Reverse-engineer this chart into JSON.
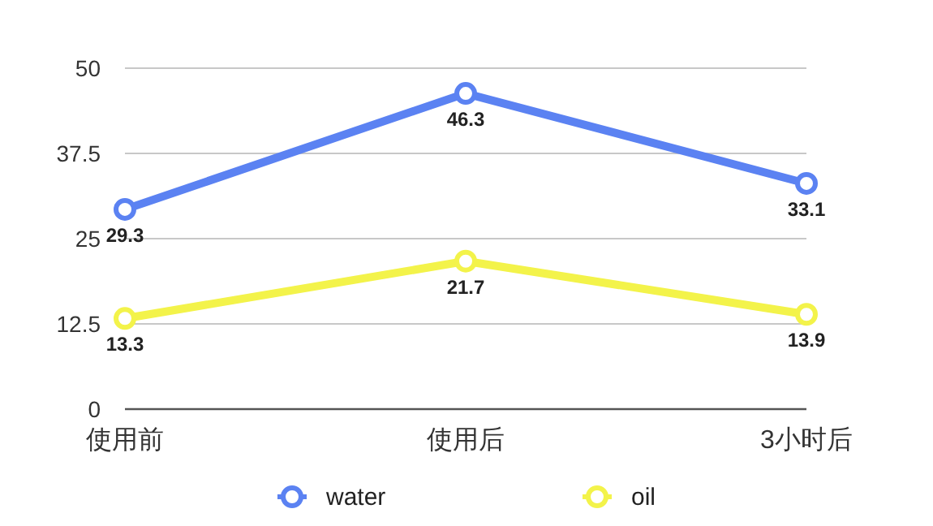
{
  "chart_data": {
    "type": "line",
    "categories": [
      "使用前",
      "使用后",
      "3小时后"
    ],
    "series": [
      {
        "name": "water",
        "color": "#5b82f2",
        "values": [
          29.3,
          46.3,
          33.1
        ]
      },
      {
        "name": "oil",
        "color": "#f3f34a",
        "values": [
          13.3,
          21.7,
          13.9
        ]
      }
    ],
    "ylim": [
      0,
      50
    ],
    "yticks": [
      0,
      12.5,
      25,
      37.5,
      50
    ],
    "grid": "y",
    "legend": "bottom",
    "marker": "circle",
    "data_labels": true
  }
}
